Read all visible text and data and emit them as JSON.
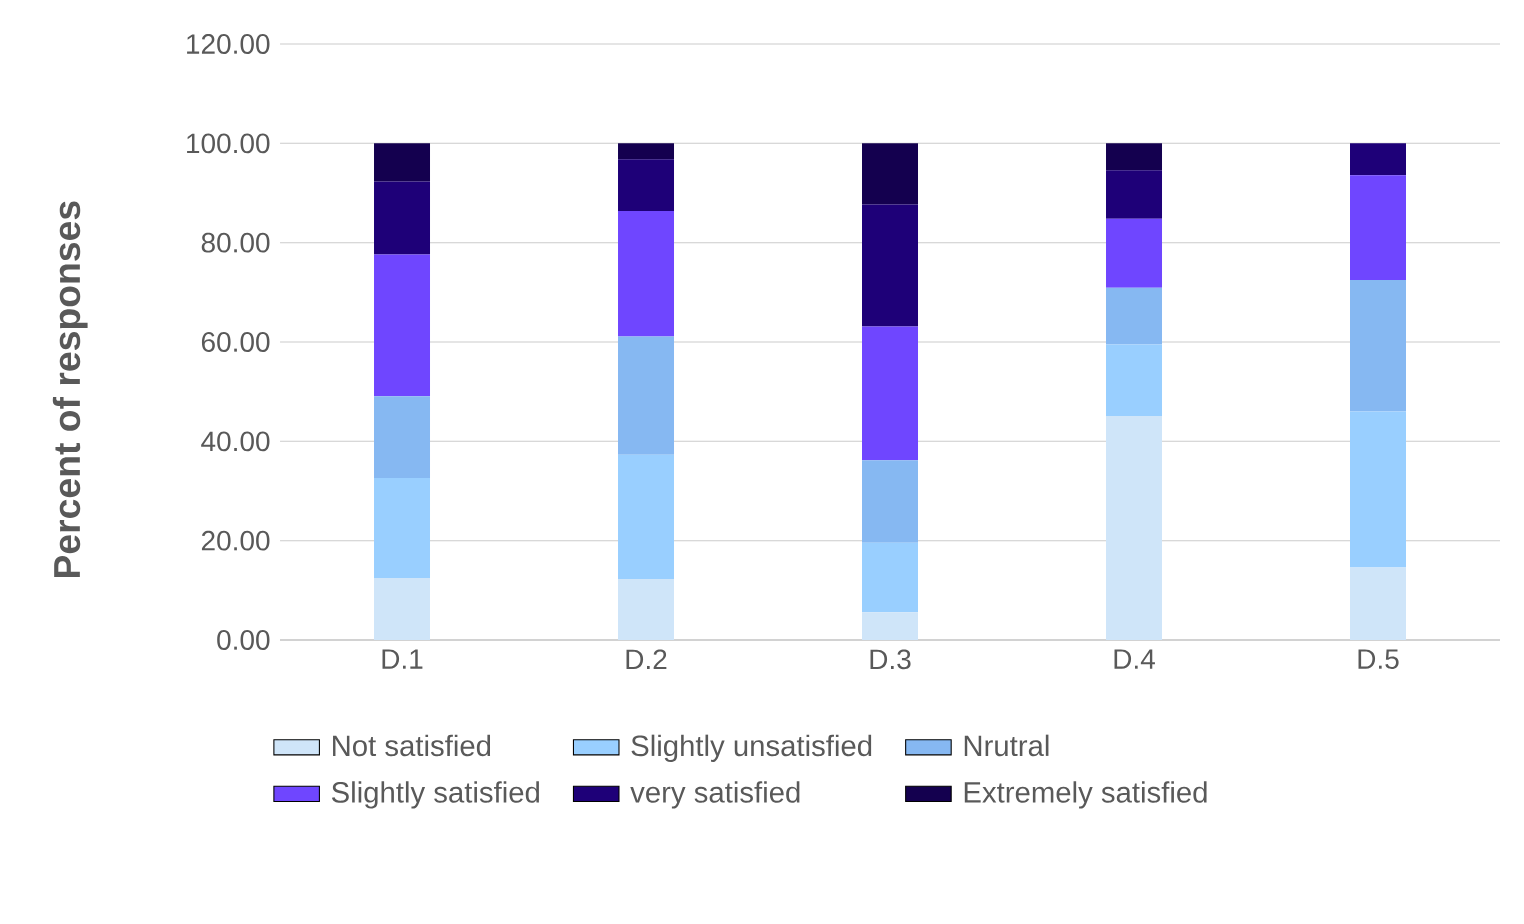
{
  "chart_data": {
    "type": "bar",
    "stacked": true,
    "ylabel": "Percent of responses",
    "categories": [
      "D.1",
      "D.2",
      "D.3",
      "D.4",
      "D.5"
    ],
    "series": [
      {
        "name": "Not satisfied",
        "color": "#cfe5f9",
        "values": [
          12.5,
          12.3,
          5.6,
          45.1,
          14.6
        ]
      },
      {
        "name": "Slightly unsatisfied",
        "color": "#99cfff",
        "values": [
          20.1,
          25.0,
          14.0,
          14.4,
          31.4
        ]
      },
      {
        "name": "Nrutral",
        "color": "#86b8f2",
        "values": [
          16.5,
          23.8,
          16.6,
          11.4,
          26.5
        ]
      },
      {
        "name": "Slightly satisfied",
        "color": "#6f46ff",
        "values": [
          28.5,
          25.3,
          26.9,
          13.9,
          21.1
        ]
      },
      {
        "name": "very satisfied",
        "color": "#1e0078",
        "values": [
          14.7,
          10.4,
          24.6,
          9.8,
          6.4
        ]
      },
      {
        "name": "Extremely satisfied",
        "color": "#14004f",
        "values": [
          7.7,
          3.2,
          12.3,
          5.4,
          0
        ]
      }
    ],
    "ylim": [
      0,
      120
    ],
    "yticks": [
      {
        "value": 0,
        "label": "0.00"
      },
      {
        "value": 20,
        "label": "20.00"
      },
      {
        "value": 40,
        "label": "40.00"
      },
      {
        "value": 60,
        "label": "60.00"
      },
      {
        "value": 80,
        "label": "80.00"
      },
      {
        "value": 100,
        "label": "100.00"
      },
      {
        "value": 120,
        "label": "120.00"
      }
    ],
    "grid": "y",
    "legend": "bottom"
  }
}
